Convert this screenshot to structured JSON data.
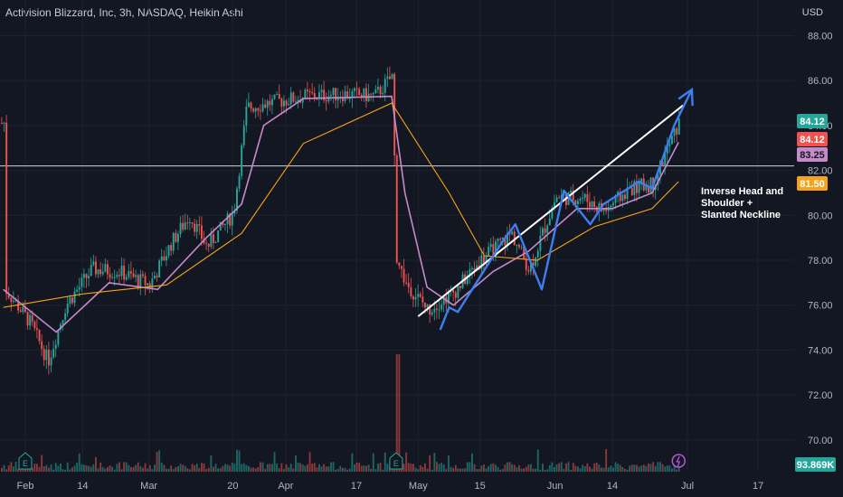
{
  "header": {
    "title": "Activision Blizzard, Inc, 3h, NASDAQ, Heikin Ashi",
    "currency": "USD"
  },
  "colors": {
    "background": "#131722",
    "grid": "#1e222d",
    "up": "#26a69a",
    "down": "#ef5350",
    "ma_fast": "#c58ac9",
    "ma_slow": "#f7a21b",
    "pattern": "#3d7ef0",
    "trendline": "#ffffff",
    "level": "#d1d4dc"
  },
  "chart_data": {
    "type": "candlestick",
    "ylim": [
      69.0,
      89.0
    ],
    "y_ticks": [
      "88.00",
      "86.00",
      "84.00",
      "82.00",
      "80.00",
      "78.00",
      "76.00",
      "74.00",
      "72.00",
      "70.00"
    ],
    "x_ticks": [
      "Feb",
      "14",
      "Mar",
      "20",
      "Apr",
      "17",
      "May",
      "15",
      "Jun",
      "14",
      "Jul",
      "17"
    ],
    "price_points": [
      {
        "x": "Jan 27",
        "y": 76.8
      },
      {
        "x": "Feb 2",
        "y": 75.2
      },
      {
        "x": "Feb 6",
        "y": 73.5
      },
      {
        "x": "Feb 10",
        "y": 76.0
      },
      {
        "x": "Feb 16",
        "y": 77.6
      },
      {
        "x": "Feb 22",
        "y": 77.5
      },
      {
        "x": "Mar 1",
        "y": 76.9
      },
      {
        "x": "Mar 6",
        "y": 78.8
      },
      {
        "x": "Mar 10",
        "y": 80.0
      },
      {
        "x": "Mar 14",
        "y": 78.6
      },
      {
        "x": "Mar 20",
        "y": 80.1
      },
      {
        "x": "Mar 23",
        "y": 84.8
      },
      {
        "x": "Mar 28",
        "y": 85.0
      },
      {
        "x": "Apr 5",
        "y": 85.3
      },
      {
        "x": "Apr 14",
        "y": 85.4
      },
      {
        "x": "Apr 21",
        "y": 85.3
      },
      {
        "x": "Apr 25",
        "y": 86.2
      },
      {
        "x": "Apr 26",
        "y": 78.0
      },
      {
        "x": "Apr 28",
        "y": 77.0
      },
      {
        "x": "May 3",
        "y": 75.8
      },
      {
        "x": "May 9",
        "y": 76.6
      },
      {
        "x": "May 15",
        "y": 78.0
      },
      {
        "x": "May 22",
        "y": 79.2
      },
      {
        "x": "May 26",
        "y": 77.6
      },
      {
        "x": "Jun 1",
        "y": 80.8
      },
      {
        "x": "Jun 7",
        "y": 80.8
      },
      {
        "x": "Jun 12",
        "y": 80.2
      },
      {
        "x": "Jun 18",
        "y": 81.2
      },
      {
        "x": "Jun 23",
        "y": 81.4
      },
      {
        "x": "Jun 26",
        "y": 82.8
      },
      {
        "x": "Jun 29",
        "y": 84.12
      }
    ],
    "volume_spike": {
      "x": "Apr 26"
    },
    "series": [
      {
        "name": "",
        "color": "#c58ac9",
        "points": [
          {
            "x": "Jan 27",
            "y": 76.7
          },
          {
            "x": "Feb 8",
            "y": 74.8
          },
          {
            "x": "Feb 20",
            "y": 77.0
          },
          {
            "x": "Mar 3",
            "y": 76.7
          },
          {
            "x": "Mar 14",
            "y": 79.0
          },
          {
            "x": "Mar 22",
            "y": 80.5
          },
          {
            "x": "Mar 27",
            "y": 84.0
          },
          {
            "x": "Apr 5",
            "y": 85.2
          },
          {
            "x": "Apr 25",
            "y": 85.3
          },
          {
            "x": "Apr 28",
            "y": 81.0
          },
          {
            "x": "May 3",
            "y": 76.8
          },
          {
            "x": "May 9",
            "y": 76.0
          },
          {
            "x": "May 18",
            "y": 77.5
          },
          {
            "x": "May 26",
            "y": 78.4
          },
          {
            "x": "Jun 6",
            "y": 80.3
          },
          {
            "x": "Jun 14",
            "y": 80.3
          },
          {
            "x": "Jun 23",
            "y": 81.0
          },
          {
            "x": "Jun 29",
            "y": 83.25
          }
        ]
      },
      {
        "name": "",
        "color": "#f7a21b",
        "points": [
          {
            "x": "Jan 27",
            "y": 75.9
          },
          {
            "x": "Feb 14",
            "y": 76.5
          },
          {
            "x": "Mar 5",
            "y": 76.9
          },
          {
            "x": "Mar 22",
            "y": 79.2
          },
          {
            "x": "Apr 5",
            "y": 83.2
          },
          {
            "x": "Apr 25",
            "y": 85.0
          },
          {
            "x": "May 8",
            "y": 81.0
          },
          {
            "x": "May 16",
            "y": 78.2
          },
          {
            "x": "May 28",
            "y": 78.0
          },
          {
            "x": "Jun 10",
            "y": 79.5
          },
          {
            "x": "Jun 23",
            "y": 80.3
          },
          {
            "x": "Jun 29",
            "y": 81.5
          }
        ]
      }
    ],
    "pattern_line": [
      {
        "x": "May 6",
        "y": 74.9
      },
      {
        "x": "May 8",
        "y": 75.9
      },
      {
        "x": "May 10",
        "y": 75.7
      },
      {
        "x": "May 20",
        "y": 78.8
      },
      {
        "x": "May 23",
        "y": 79.6
      },
      {
        "x": "May 29",
        "y": 76.7
      },
      {
        "x": "Jun 3",
        "y": 81.1
      },
      {
        "x": "Jun 9",
        "y": 79.6
      },
      {
        "x": "Jun 12",
        "y": 80.5
      },
      {
        "x": "Jun 20",
        "y": 81.5
      },
      {
        "x": "Jun 23",
        "y": 81.2
      },
      {
        "x": "Jun 28",
        "y": 84.0
      }
    ],
    "pattern_arrow": [
      {
        "x": "Jun 28",
        "y": 84.0
      },
      {
        "x": "Jul 2",
        "y": 85.6
      }
    ],
    "neckline": [
      {
        "x": "May 1",
        "y": 75.5
      },
      {
        "x": "Jun 30",
        "y": 84.9
      }
    ],
    "horizontal_level": 82.2,
    "annotation": "Inverse Head and\nShoulder +\nSlanted Neckline",
    "price_badges": [
      {
        "label": "84.12",
        "value": 84.12,
        "color": "#26a69a"
      },
      {
        "label": "84.12",
        "value": 84.12,
        "color": "#ef5350"
      },
      {
        "label": "83.25",
        "value": 83.25,
        "color": "#c58ac9"
      },
      {
        "label": "81.50",
        "value": 81.5,
        "color": "#f7a21b"
      }
    ],
    "volume_badge": "93.869K",
    "event_markers": [
      {
        "x": "Feb 1",
        "label": "E"
      },
      {
        "x": "Apr 26",
        "label": "E"
      }
    ],
    "bolt_marker": {
      "x": "Jun 29"
    }
  }
}
